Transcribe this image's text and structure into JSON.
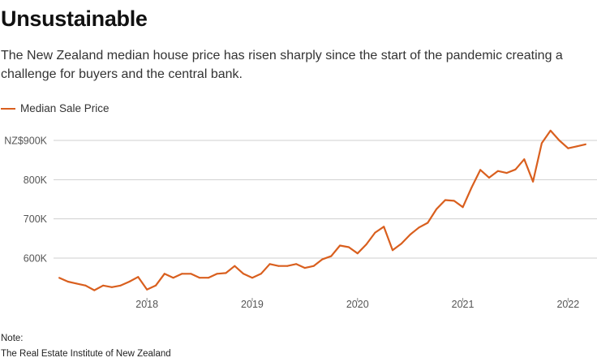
{
  "title": "Unsustainable",
  "subtitle": "The New Zealand median house price has risen sharply since the start of the pandemic creating a challenge for buyers and the central bank.",
  "colors": {
    "series": "#d95f1e",
    "grid": "#cfcfcf",
    "axis_text": "#555555"
  },
  "note": {
    "label": "Note:",
    "source": "The Real Estate Institute of New Zealand"
  },
  "chart_data": {
    "type": "line",
    "title": "",
    "xlabel": "",
    "ylabel": "",
    "ylim": [
      500000,
      940000
    ],
    "y_ticks": [
      {
        "value": 600000,
        "label": "600K"
      },
      {
        "value": 700000,
        "label": "700K"
      },
      {
        "value": 800000,
        "label": "800K"
      },
      {
        "value": 900000,
        "label": "NZ$900K"
      }
    ],
    "x_ticks": [
      "2018",
      "2019",
      "2020",
      "2021",
      "2022"
    ],
    "grid": true,
    "legend": "top-left",
    "series": [
      {
        "name": "Median Sale Price",
        "x": [
          "2017-03",
          "2017-04",
          "2017-05",
          "2017-06",
          "2017-07",
          "2017-08",
          "2017-09",
          "2017-10",
          "2017-11",
          "2017-12",
          "2018-01",
          "2018-02",
          "2018-03",
          "2018-04",
          "2018-05",
          "2018-06",
          "2018-07",
          "2018-08",
          "2018-09",
          "2018-10",
          "2018-11",
          "2018-12",
          "2019-01",
          "2019-02",
          "2019-03",
          "2019-04",
          "2019-05",
          "2019-06",
          "2019-07",
          "2019-08",
          "2019-09",
          "2019-10",
          "2019-11",
          "2019-12",
          "2020-01",
          "2020-02",
          "2020-03",
          "2020-04",
          "2020-05",
          "2020-06",
          "2020-07",
          "2020-08",
          "2020-09",
          "2020-10",
          "2020-11",
          "2020-12",
          "2021-01",
          "2021-02",
          "2021-03",
          "2021-04",
          "2021-05",
          "2021-06",
          "2021-07",
          "2021-08",
          "2021-09",
          "2021-10",
          "2021-11",
          "2021-12",
          "2022-01",
          "2022-02",
          "2022-03"
        ],
        "values": [
          550000,
          540000,
          535000,
          530000,
          518000,
          530000,
          526000,
          530000,
          540000,
          552000,
          520000,
          530000,
          560000,
          550000,
          560000,
          560000,
          550000,
          550000,
          560000,
          562000,
          580000,
          560000,
          550000,
          560000,
          585000,
          580000,
          580000,
          585000,
          575000,
          580000,
          597000,
          605000,
          632000,
          628000,
          612000,
          635000,
          665000,
          680000,
          620000,
          637000,
          660000,
          678000,
          690000,
          725000,
          748000,
          746000,
          730000,
          780000,
          825000,
          805000,
          822000,
          817000,
          826000,
          852000,
          795000,
          893000,
          925000,
          900000,
          880000,
          885000,
          890000
        ]
      }
    ]
  }
}
